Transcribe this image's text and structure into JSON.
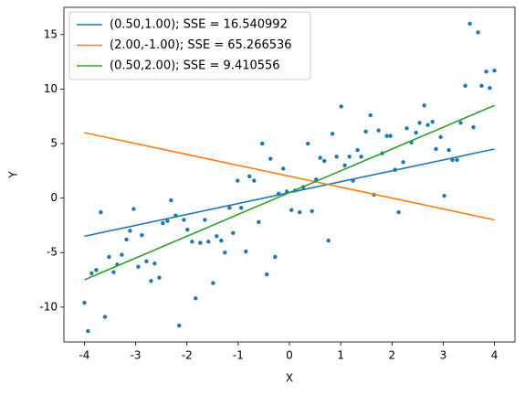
{
  "chart_data": {
    "type": "scatter",
    "x_label": "X",
    "y_label": "Y",
    "xlim": [
      -4.4,
      4.4
    ],
    "ylim": [
      -13.2,
      17.5
    ],
    "xticks": [
      -4,
      -3,
      -2,
      -1,
      0,
      1,
      2,
      3,
      4
    ],
    "yticks": [
      -10,
      -5,
      0,
      5,
      10,
      15
    ],
    "legend": "upper-left",
    "points": {
      "color": "#1f77b4",
      "x": [
        -4.0,
        -3.93,
        -3.86,
        -3.77,
        -3.68,
        -3.6,
        -3.52,
        -3.43,
        -3.36,
        -3.27,
        -3.18,
        -3.11,
        -3.04,
        -2.95,
        -2.88,
        -2.79,
        -2.7,
        -2.63,
        -2.54,
        -2.47,
        -2.38,
        -2.31,
        -2.22,
        -2.15,
        -2.06,
        -1.99,
        -1.9,
        -1.83,
        -1.74,
        -1.65,
        -1.58,
        -1.49,
        -1.42,
        -1.33,
        -1.26,
        -1.17,
        -1.1,
        -1.01,
        -0.94,
        -0.85,
        -0.78,
        -0.69,
        -0.6,
        -0.53,
        -0.44,
        -0.37,
        -0.28,
        -0.21,
        -0.12,
        -0.05,
        0.04,
        0.11,
        0.2,
        0.27,
        0.36,
        0.44,
        0.52,
        0.6,
        0.68,
        0.76,
        0.84,
        0.92,
        1.01,
        1.08,
        1.17,
        1.24,
        1.33,
        1.4,
        1.49,
        1.58,
        1.65,
        1.74,
        1.81,
        1.9,
        1.97,
        2.06,
        2.13,
        2.22,
        2.29,
        2.38,
        2.47,
        2.54,
        2.63,
        2.7,
        2.79,
        2.86,
        2.95,
        3.02,
        3.11,
        3.18,
        3.27,
        3.34,
        3.43,
        3.52,
        3.59,
        3.68,
        3.75,
        3.84,
        3.91,
        4.0
      ],
      "values": [
        -9.6,
        -12.2,
        -6.9,
        -6.6,
        -1.3,
        -10.9,
        -5.4,
        -6.8,
        -6.1,
        -5.2,
        -3.8,
        -3.0,
        -1.0,
        -6.3,
        -3.4,
        -5.8,
        -7.6,
        -6.0,
        -7.3,
        -2.3,
        -2.1,
        -0.2,
        -1.6,
        -11.7,
        -2.0,
        -2.9,
        -4.0,
        -9.2,
        -4.1,
        -2.0,
        -4.0,
        -7.8,
        -3.5,
        -3.9,
        -5.0,
        -0.9,
        -3.2,
        1.6,
        -0.9,
        -4.9,
        2.0,
        1.6,
        -2.2,
        5.0,
        -7.0,
        3.6,
        -5.4,
        0.4,
        2.7,
        0.6,
        -1.1,
        0.7,
        -1.3,
        1.0,
        5.0,
        -1.2,
        1.7,
        3.7,
        3.4,
        -3.9,
        5.9,
        3.8,
        8.4,
        3.0,
        3.8,
        1.6,
        4.4,
        3.8,
        6.1,
        7.6,
        0.3,
        6.2,
        4.1,
        5.7,
        5.7,
        2.6,
        -1.3,
        3.3,
        6.4,
        5.1,
        6.0,
        6.9,
        8.5,
        6.7,
        7.0,
        4.5,
        5.6,
        0.2,
        4.4,
        3.5,
        3.5,
        6.9,
        10.3,
        16.0,
        6.5,
        15.2,
        10.3,
        11.6,
        10.1,
        11.7
      ]
    },
    "series": [
      {
        "name": "(0.50,1.00); SSE = 16.540992",
        "color": "#1f77b4",
        "x": [
          -4,
          4
        ],
        "values": [
          -3.5,
          4.5
        ]
      },
      {
        "name": "(2.00,-1.00); SSE = 65.266536",
        "color": "#ff7f0e",
        "x": [
          -4,
          4
        ],
        "values": [
          6,
          -2
        ]
      },
      {
        "name": "(0.50,2.00); SSE = 9.410556",
        "color": "#2ca02c",
        "x": [
          -4,
          4
        ],
        "values": [
          -7.5,
          8.5
        ]
      }
    ]
  }
}
